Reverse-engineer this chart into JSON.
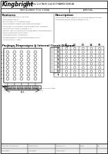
{
  "page_bg": "#f5f5f5",
  "border_color": "#000000",
  "company": "Kingbright",
  "product_line": "50.8mm (2.0 INCH) 5x8 DOT MATRIX DISPLAY",
  "part_number": "PART NUMBER: TC24-11GWA",
  "approval": "APPROVAL",
  "features_title": "Features",
  "features": [
    "RED, SUPER BRIGHT & YELLOW",
    "HIGH WIDE ANGLE",
    "BLAND DISPLAY & VIEWING SIDE",
    "LOW CURRENT OPERATION DIRECT SEGMENT",
    "EXCELLENT FACE NOTES WHEN OPERATING LIGHTING",
    "ATTRACTIVE 5 CONTACTS PER 4. D",
    "DESIGN APPLICATIONS FOR ICS ELEMENTS FOR SEGMENTS",
    "MULTI-FUNCTION APPLICABLE",
    "HIGH EFFICIENCY & SEGMENT",
    "ENVIRONMENTAL SUPER GRADE EMITS DATA",
    "STATIC DISPLAY AREA"
  ],
  "description_title": "Description",
  "description": [
    "This sheet studies devices are character display format.",
    "Characters based on phi 0.4deep Curve."
  ],
  "package_title": "Package Dimensions & Internal Circuit Diagram",
  "notes": [
    "Notes:",
    "1. All dimensions are in millimeters. Values typical unless noted.",
    "2. Specifications subject to change without notice."
  ],
  "footer_cols": [
    [
      "SPEC NO: DSA0M-0177",
      "ISSUE DATE: --"
    ],
    [
      "DRAWING: --",
      "CHECKED: --"
    ],
    [
      "STATUS: --",
      "PAGE: 1 OF 1"
    ]
  ]
}
